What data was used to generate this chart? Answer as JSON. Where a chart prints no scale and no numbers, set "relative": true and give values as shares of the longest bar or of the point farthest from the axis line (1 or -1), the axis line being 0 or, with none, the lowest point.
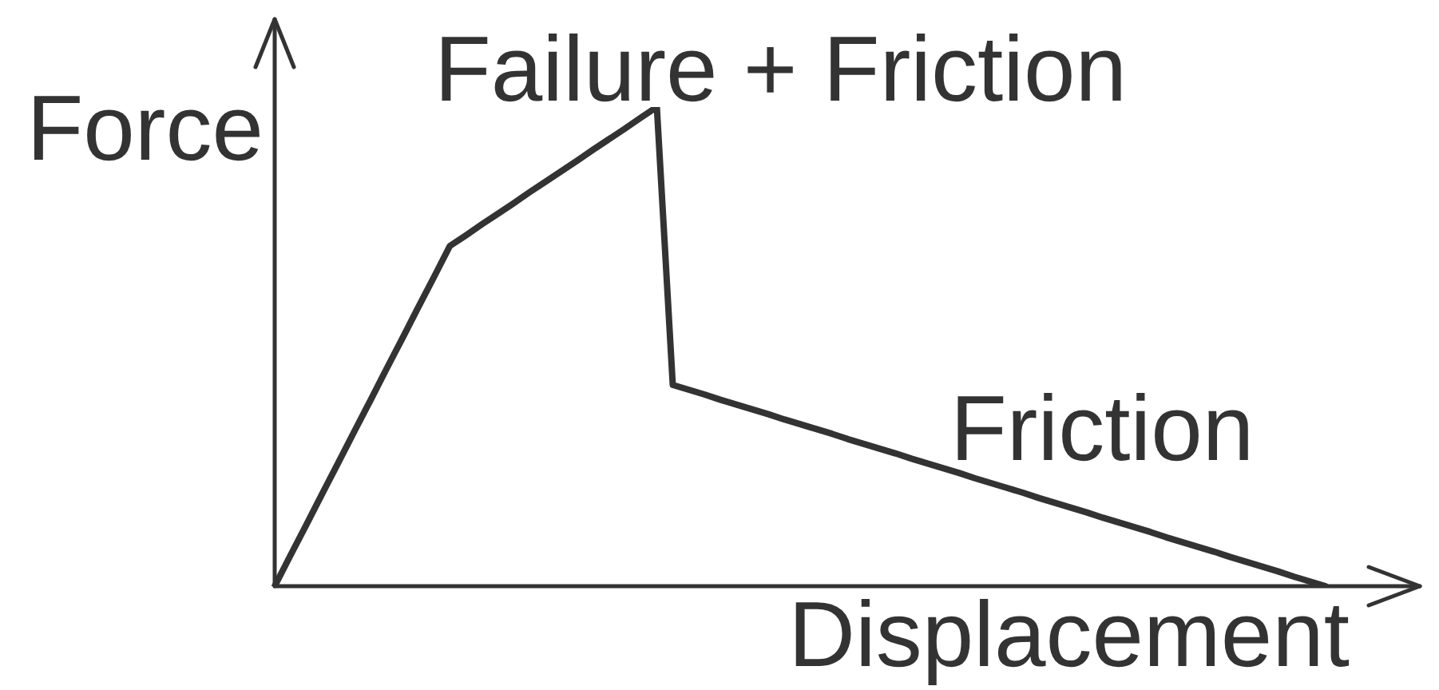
{
  "chart_data": {
    "type": "line",
    "relative": true,
    "xlabel": "Displacement",
    "ylabel": "Force",
    "categories": [
      null,
      null,
      null,
      null,
      null,
      null,
      null,
      null,
      null,
      null,
      null,
      null,
      null,
      null,
      null,
      null,
      null,
      null,
      null,
      null,
      null,
      null,
      null,
      null,
      null,
      null,
      null,
      null,
      null,
      null,
      null,
      null,
      null,
      null,
      null,
      null,
      null,
      null,
      null,
      null,
      null,
      null,
      null,
      null,
      null,
      null,
      null,
      null,
      null,
      null,
      null,
      null,
      null,
      null,
      null,
      null,
      null,
      null,
      null,
      null,
      null,
      null,
      null,
      null,
      null,
      null,
      null
    ],
    "values": [
      0,
      0.065,
      0.129,
      0.194,
      0.258,
      0.323,
      0.387,
      0.452,
      0.516,
      0.581,
      0.645,
      0.71,
      0.732,
      0.755,
      0.777,
      0.799,
      0.822,
      0.844,
      0.866,
      0.888,
      0.911,
      0.933,
      0.955,
      0.978,
      1,
      0.42,
      0.41,
      0.4,
      0.389,
      0.379,
      0.369,
      0.359,
      0.348,
      0.338,
      0.328,
      0.318,
      0.307,
      0.297,
      0.287,
      0.277,
      0.266,
      0.256,
      0.246,
      0.236,
      0.225,
      0.215,
      0.205,
      0.195,
      0.184,
      0.174,
      0.164,
      0.154,
      0.143,
      0.133,
      0.123,
      0.113,
      0.102,
      0.092,
      0.082,
      0.072,
      0.061,
      0.051,
      0.041,
      0.031,
      0.02,
      0.01,
      0
    ],
    "color": "#333333",
    "marker": "none",
    "annotations": [
      "Failure + Friction",
      "Friction"
    ]
  }
}
